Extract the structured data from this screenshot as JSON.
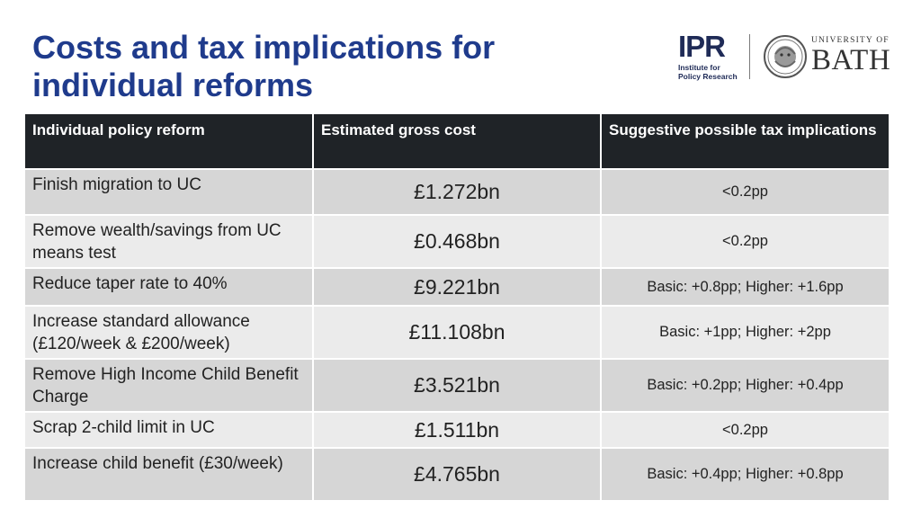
{
  "title": "Costs and tax implications for individual reforms",
  "logos": {
    "ipr_abbrev": "IPR",
    "ipr_line1": "Institute for",
    "ipr_line2": "Policy Research",
    "uni_line1": "UNIVERSITY OF",
    "uni_line2": "BATH"
  },
  "table": {
    "headers": [
      "Individual policy reform",
      "Estimated gross cost",
      "Suggestive possible tax implications"
    ],
    "rows": [
      {
        "reform": "Finish migration to UC",
        "cost": "£1.272bn",
        "tax": "<0.2pp"
      },
      {
        "reform": "Remove wealth/savings from UC means test",
        "cost": "£0.468bn",
        "tax": "<0.2pp"
      },
      {
        "reform": "Reduce taper rate to 40%",
        "cost": "£9.221bn",
        "tax": "Basic: +0.8pp; Higher: +1.6pp"
      },
      {
        "reform": "Increase standard allowance (£120/week & £200/week)",
        "cost": "£11.108bn",
        "tax": "Basic: +1pp; Higher: +2pp"
      },
      {
        "reform": "Remove High Income Child Benefit Charge",
        "cost": "£3.521bn",
        "tax": "Basic: +0.2pp; Higher: +0.4pp"
      },
      {
        "reform": "Scrap 2-child limit in UC",
        "cost": "£1.511bn",
        "tax": "<0.2pp"
      },
      {
        "reform": "Increase child benefit (£30/week)",
        "cost": "£4.765bn",
        "tax": "Basic: +0.4pp; Higher: +0.8pp"
      }
    ]
  },
  "colors": {
    "title": "#1f3b8c",
    "header_bg": "#1f2327",
    "row_dark": "#d6d6d6",
    "row_light": "#ebebeb"
  }
}
